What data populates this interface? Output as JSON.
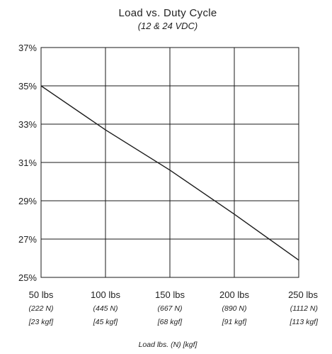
{
  "chart_data": {
    "type": "line",
    "title": "Load vs. Duty Cycle",
    "subtitle": "(12  & 24 VDC)",
    "xlabel": "Load lbs. (N) [kgf]",
    "ylabel": "",
    "categories": [
      "50 lbs",
      "100 lbs",
      "150 lbs",
      "200 lbs",
      "250 lbs"
    ],
    "x_sub_newton": [
      "(222 N)",
      "(445 N)",
      "(667 N)",
      "(890 N)",
      "(1112 N)"
    ],
    "x_sub_kgf": [
      "[23 kgf]",
      "[45 kgf]",
      "[68 kgf]",
      "[91 kgf]",
      "[113 kgf]"
    ],
    "x": [
      50,
      100,
      150,
      200,
      250
    ],
    "xlim": [
      50,
      250
    ],
    "y_ticks": [
      "25%",
      "27%",
      "29%",
      "31%",
      "33%",
      "35%",
      "37%"
    ],
    "ylim": [
      25,
      37
    ],
    "y_unit": "%",
    "grid": true,
    "series": [
      {
        "values": [
          35,
          32.7,
          30.6,
          28.3,
          25.9
        ]
      }
    ],
    "colors": {
      "line": "#1a1a1a",
      "grid": "#1a1a1a",
      "background": "#ffffff"
    }
  }
}
